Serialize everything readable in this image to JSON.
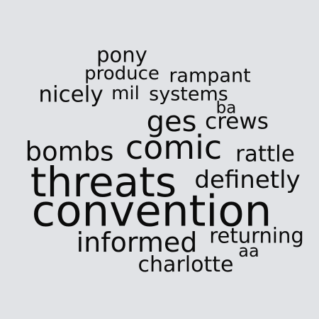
{
  "word_cloud": {
    "background_color": "#e1e3e6",
    "text_color": "#0b0b0b",
    "words": [
      "pony",
      "produce",
      "rampant",
      "nicely",
      "mil",
      "systems",
      "ba",
      "ges",
      "crews",
      "bombs",
      "comic",
      "rattle",
      "threats",
      "definetly",
      "convention",
      "informed",
      "returning",
      "aa",
      "charlotte"
    ]
  }
}
